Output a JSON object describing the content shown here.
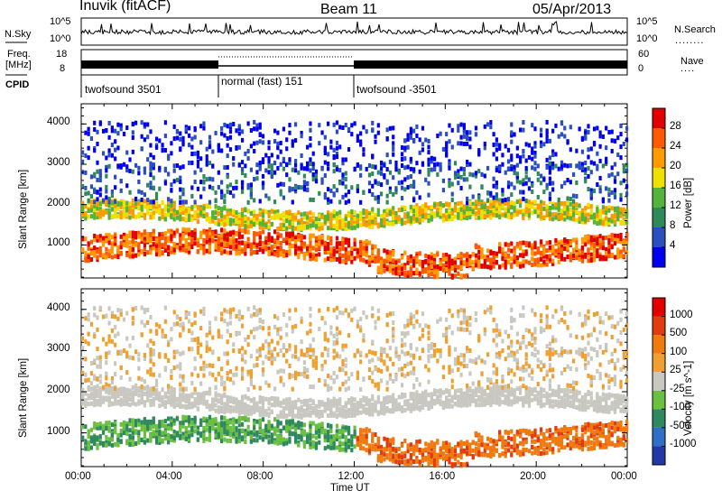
{
  "header": {
    "station": "Inuvik (fitACF)",
    "beam": "Beam 11",
    "date": "05/Apr/2013"
  },
  "panels": {
    "nsky": {
      "label": "N.Sky",
      "ylim_labels": [
        "10^5",
        "10^0"
      ]
    },
    "nsearch": {
      "label": "N.Search",
      "ylim_labels": [
        "10^5",
        "10^0"
      ]
    },
    "freq": {
      "label_line1": "Freq.",
      "label_line2": "[MHz]",
      "ticks": [
        "18",
        "8"
      ]
    },
    "nave": {
      "label": "Nave",
      "ticks": [
        "60",
        "0"
      ]
    },
    "cpid": {
      "label": "CPID",
      "segments": [
        {
          "label": "twofsound 3501",
          "start_hour": 0,
          "end_hour": 6
        },
        {
          "label": "normal (fast) 151",
          "start_hour": 6,
          "end_hour": 12
        },
        {
          "label": "twofsound -3501",
          "start_hour": 12,
          "end_hour": 24
        }
      ]
    }
  },
  "chart_data": [
    {
      "type": "heatmap",
      "title": "Power",
      "ylabel": "Slant Range [km]",
      "xlabel": "Time UT",
      "xlim": [
        0,
        24
      ],
      "ylim": [
        180,
        4500
      ],
      "y_ticks": [
        "1000",
        "2000",
        "3000",
        "4000"
      ],
      "x_ticks": [
        "00:00",
        "04:00",
        "08:00",
        "12:00",
        "16:00",
        "20:00",
        "00:00"
      ],
      "colorbar": {
        "label": "Power [dB]",
        "ticks": [
          "28",
          "24",
          "20",
          "16",
          "12",
          "8",
          "4"
        ],
        "colors": [
          "#0000f0",
          "#2a4fbf",
          "#2f8a5a",
          "#53b33a",
          "#f0e000",
          "#ff9a00",
          "#ff5a00",
          "#e00000"
        ]
      }
    },
    {
      "type": "heatmap",
      "title": "Velocity",
      "ylabel": "Slant Range [km]",
      "xlabel": "Time UT",
      "xlim": [
        0,
        24
      ],
      "ylim": [
        180,
        4500
      ],
      "y_ticks": [
        "1000",
        "2000",
        "3000",
        "4000"
      ],
      "x_ticks": [
        "00:00",
        "04:00",
        "08:00",
        "12:00",
        "16:00",
        "20:00",
        "00:00"
      ],
      "colorbar": {
        "label": "Velocity [m s^-1]",
        "ticks": [
          "1000",
          "500",
          "100",
          "25",
          "-25",
          "-100",
          "-500",
          "-1000"
        ],
        "colors": [
          "#2238a8",
          "#2f6fc8",
          "#2e8a5e",
          "#6cc040",
          "#c8c8c0",
          "#f0a030",
          "#f07a10",
          "#e03c10",
          "#e00000"
        ]
      }
    }
  ]
}
